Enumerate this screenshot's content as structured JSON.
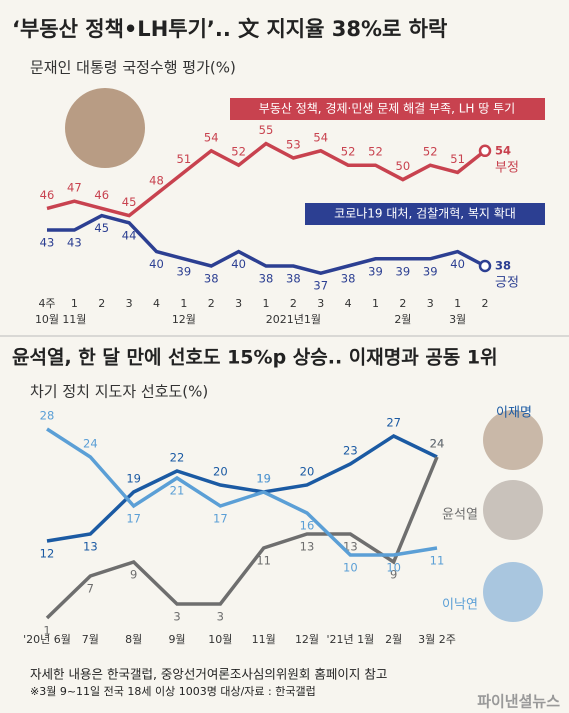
{
  "chart_data": [
    {
      "type": "line",
      "title": "‘부동산 정책•LH투기’.. 文 지지율 38%로 하락",
      "subtitle": "문재인 대통령 국정수행 평가(%)",
      "categories": [
        "4주",
        "1",
        "2",
        "3",
        "4",
        "1",
        "2",
        "3",
        "1",
        "2",
        "3",
        "4",
        "1",
        "2",
        "3",
        "1",
        "2"
      ],
      "months": [
        "10월",
        "11월",
        null,
        null,
        null,
        "12월",
        null,
        null,
        null,
        "2021년1월",
        null,
        null,
        null,
        "2월",
        null,
        "3월",
        null
      ],
      "ylim": [
        33,
        58
      ],
      "annotations": [
        "부동산 정책, 경제·민생 문제 해결 부족, LH 땅 투기",
        "코로나19 대처, 검찰개혁, 복지 확대"
      ],
      "series": [
        {
          "name": "부정",
          "color": "#c8424f",
          "values": [
            46,
            47,
            46,
            45,
            48,
            51,
            54,
            52,
            55,
            53,
            54,
            52,
            52,
            50,
            52,
            51,
            54
          ]
        },
        {
          "name": "긍정",
          "color": "#2c3f92",
          "values": [
            43,
            43,
            45,
            44,
            40,
            39,
            38,
            40,
            38,
            38,
            37,
            38,
            39,
            39,
            39,
            40,
            38
          ]
        }
      ]
    },
    {
      "type": "line",
      "title": "윤석열, 한 달 만에 선호도 15%p 상승.. 이재명과 공동 1위",
      "subtitle": "차기 정치 지도자 선호도(%)",
      "categories": [
        "'20년 6월",
        "7월",
        "8월",
        "9월",
        "10월",
        "11월",
        "12월",
        "'21년 1월",
        "2월",
        "3월 2주"
      ],
      "ylim": [
        0,
        30
      ],
      "series": [
        {
          "name": "이재명",
          "color": "#1b5aa3",
          "values": [
            12,
            13,
            19,
            22,
            20,
            19,
            20,
            23,
            27,
            24
          ]
        },
        {
          "name": "윤석열",
          "color": "#6e6e6e",
          "values": [
            1,
            7,
            9,
            3,
            3,
            11,
            13,
            13,
            9,
            24
          ]
        },
        {
          "name": "이낙연",
          "color": "#5b9fd6",
          "values": [
            28,
            24,
            17,
            21,
            17,
            19,
            16,
            10,
            10,
            11
          ]
        }
      ]
    }
  ],
  "footer": {
    "note": "자세한 내용은 한국갤럽, 중앙선거여론조사심의위원회 홈페이지 참고",
    "source": "※3월 9~11일 전국 18세 이상 1003명 대상/자료 : 한국갤럽",
    "logo": "파이낸셜뉴스"
  }
}
